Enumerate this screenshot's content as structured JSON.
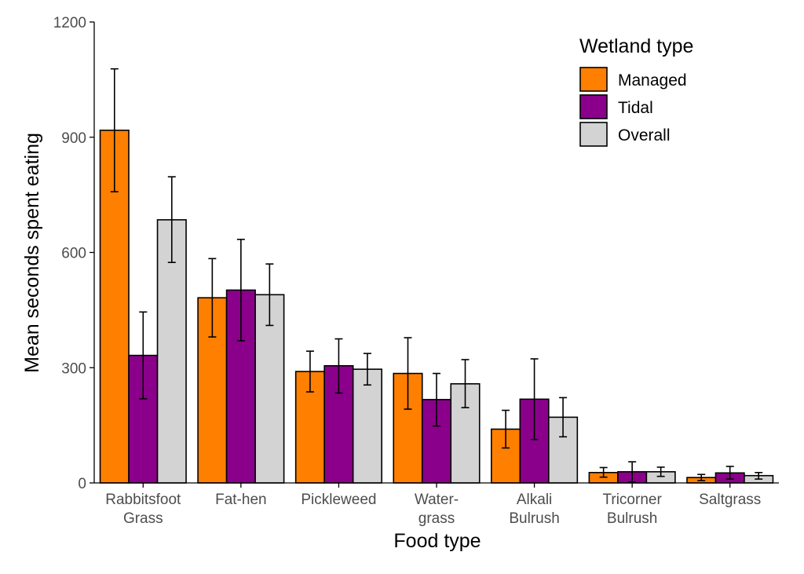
{
  "chart_data": {
    "type": "bar",
    "xlabel": "Food type",
    "ylabel": "Mean seconds spent eating",
    "ylim": [
      0,
      1200
    ],
    "yticks": [
      "0",
      "300",
      "600",
      "900",
      "1200"
    ],
    "categories": [
      [
        "Rabbitsfoot",
        "Grass"
      ],
      [
        "Fat-hen"
      ],
      [
        "Pickleweed"
      ],
      [
        "Water-",
        "grass"
      ],
      [
        "Alkali",
        "Bulrush"
      ],
      [
        "Tricorner",
        "Bulrush"
      ],
      [
        "Saltgrass"
      ]
    ],
    "legend": {
      "title": "Wetland type",
      "position": "top-right"
    },
    "grid": false,
    "series": [
      {
        "name": "Managed",
        "color": "#ff7f00",
        "values": [
          918,
          482,
          290,
          285,
          140,
          27,
          14
        ],
        "err_low": [
          758,
          380,
          237,
          192,
          91,
          15,
          6
        ],
        "err_high": [
          1078,
          584,
          343,
          378,
          189,
          40,
          22
        ]
      },
      {
        "name": "Tidal",
        "color": "#8b008b",
        "values": [
          332,
          502,
          305,
          217,
          218,
          29,
          26
        ],
        "err_low": [
          219,
          370,
          234,
          148,
          113,
          2,
          10
        ],
        "err_high": [
          445,
          634,
          375,
          285,
          323,
          55,
          43
        ]
      },
      {
        "name": "Overall",
        "color": "#d3d3d3",
        "values": [
          685,
          490,
          296,
          258,
          171,
          29,
          19
        ],
        "err_low": [
          574,
          410,
          255,
          196,
          120,
          17,
          10
        ],
        "err_high": [
          797,
          570,
          337,
          321,
          222,
          41,
          27
        ]
      }
    ]
  }
}
